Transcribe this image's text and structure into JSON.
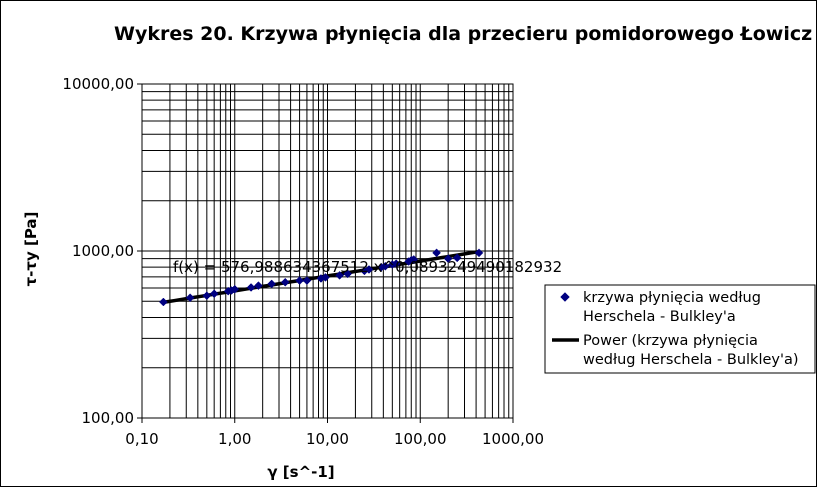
{
  "chart_data": {
    "type": "scatter",
    "title": "Wykres 20. Krzywa płynięcia dla przecieru pomidorowego Łowicz",
    "xlabel": "γ [s^-1]",
    "ylabel": "τ-τy [Pa]",
    "x_scale": "log",
    "y_scale": "log",
    "xlim": [
      0.1,
      1000
    ],
    "ylim": [
      100,
      10000
    ],
    "x_ticks": [
      "0,10",
      "1,00",
      "10,00",
      "100,00",
      "1000,00"
    ],
    "y_ticks": [
      "100,00",
      "1000,00",
      "10000,00"
    ],
    "grid": true,
    "legend_position": "right",
    "series": [
      {
        "name": "krzywa płynięcia według Herschela - Bulkley'a",
        "kind": "points",
        "color": "#000080",
        "marker": "diamond",
        "x": [
          0.17,
          0.33,
          0.5,
          0.6,
          0.85,
          0.92,
          1.0,
          1.5,
          1.8,
          2.5,
          3.5,
          5.0,
          6.0,
          8.5,
          9.5,
          13.5,
          16.5,
          25,
          28,
          38,
          42,
          50,
          55,
          75,
          80,
          85,
          150,
          200,
          250,
          430
        ],
        "y": [
          495,
          525,
          540,
          555,
          575,
          580,
          590,
          605,
          620,
          635,
          650,
          665,
          665,
          685,
          695,
          715,
          730,
          760,
          775,
          800,
          810,
          830,
          840,
          865,
          880,
          890,
          975,
          900,
          910,
          975
        ]
      },
      {
        "name": "Power (krzywa płynięcia według Herschela - Bulkley'a)",
        "kind": "line",
        "color": "#000000",
        "a": 576.988634367512,
        "b": 0.0893249490182932,
        "x_range": [
          0.17,
          430
        ]
      }
    ],
    "legend": {
      "series1_lines": [
        "krzywa płynięcia według",
        "Herschela - Bulkley'a"
      ],
      "series2_lines": [
        "Power (krzywa płynięcia",
        "według Herschela - Bulkley'a)"
      ]
    },
    "annotation": "f(x) = 576,988634367512 x^0,0893249490182932"
  }
}
